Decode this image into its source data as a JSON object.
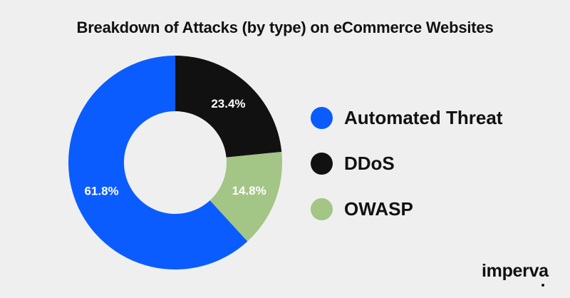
{
  "chart_data": {
    "type": "pie",
    "title": "Breakdown of Attacks (by type) on eCommerce Websites",
    "donut": true,
    "legend_position": "right",
    "slices": [
      {
        "label": "Automated Threat",
        "value": 61.8,
        "value_label": "61.8%",
        "color": "#0a5cff"
      },
      {
        "label": "DDoS",
        "value": 23.4,
        "value_label": "23.4%",
        "color": "#111111"
      },
      {
        "label": "OWASP",
        "value": 14.8,
        "value_label": "14.8%",
        "color": "#a3c585"
      }
    ]
  },
  "brand": {
    "logo_text": "imperva"
  },
  "colors": {
    "background": "#efefef",
    "text": "#111111"
  }
}
